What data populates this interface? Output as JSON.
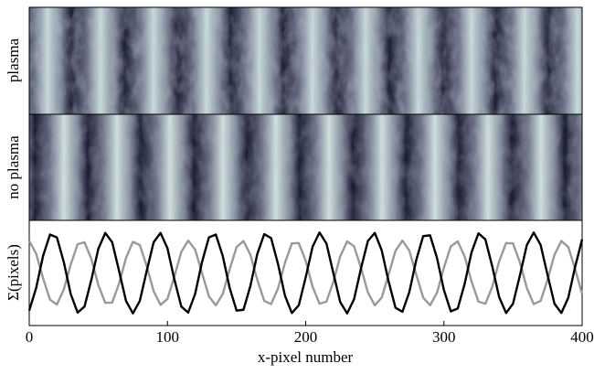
{
  "chart_data": {
    "type": "line",
    "panel_labels": [
      "plasma",
      "no plasma"
    ],
    "xlabel": "x-pixel number",
    "ylabel": "Σ(pixels)",
    "xlim": [
      0,
      400
    ],
    "xticks": [
      0,
      100,
      200,
      300,
      400
    ],
    "ylim": [
      -1.3,
      1.3
    ],
    "x": [
      0,
      5,
      10,
      15,
      20,
      25,
      30,
      35,
      40,
      45,
      50,
      55,
      60,
      65,
      70,
      75,
      80,
      85,
      90,
      95,
      100,
      105,
      110,
      115,
      120,
      125,
      130,
      135,
      140,
      145,
      150,
      155,
      160,
      165,
      170,
      175,
      180,
      185,
      190,
      195,
      200,
      205,
      210,
      215,
      220,
      225,
      230,
      235,
      240,
      245,
      250,
      255,
      260,
      265,
      270,
      275,
      280,
      285,
      290,
      295,
      300,
      305,
      310,
      315,
      320,
      325,
      330,
      335,
      340,
      345,
      350,
      355,
      360,
      365,
      370,
      375,
      380,
      385,
      390,
      395,
      400
    ],
    "series": [
      {
        "color": "#999999",
        "values": [
          0.79,
          0.48,
          -0.13,
          -0.66,
          -0.78,
          -0.41,
          0.21,
          0.71,
          0.76,
          0.34,
          -0.3,
          -0.74,
          -0.73,
          -0.26,
          0.37,
          0.77,
          0.69,
          0.17,
          -0.45,
          -0.79,
          -0.64,
          -0.09,
          0.52,
          0.8,
          0.58,
          0.0,
          -0.58,
          -0.8,
          -0.52,
          0.09,
          0.64,
          0.79,
          0.45,
          -0.17,
          -0.69,
          -0.77,
          -0.38,
          0.25,
          0.73,
          0.74,
          0.3,
          -0.34,
          -0.76,
          -0.71,
          -0.22,
          0.41,
          0.78,
          0.66,
          0.13,
          -0.48,
          -0.8,
          -0.61,
          -0.04,
          0.55,
          0.8,
          0.55,
          -0.04,
          -0.61,
          -0.8,
          -0.49,
          0.13,
          0.66,
          0.78,
          0.41,
          -0.21,
          -0.71,
          -0.76,
          -0.34,
          0.29,
          0.74,
          0.73,
          0.26,
          -0.37,
          -0.77,
          -0.69,
          -0.17,
          0.45,
          0.79,
          0.64,
          0.09,
          -0.52
        ]
      },
      {
        "color": "#000000",
        "values": [
          -0.93,
          -0.37,
          0.42,
          0.95,
          0.88,
          0.27,
          -0.52,
          -0.98,
          -0.83,
          -0.16,
          0.6,
          0.99,
          0.76,
          0.05,
          -0.69,
          -1.0,
          -0.69,
          0.05,
          0.76,
          0.99,
          0.61,
          -0.16,
          -0.83,
          -0.98,
          -0.52,
          0.27,
          0.88,
          0.95,
          0.42,
          -0.37,
          -0.93,
          -0.91,
          -0.32,
          0.47,
          0.96,
          0.86,
          0.22,
          -0.56,
          -0.99,
          -0.8,
          -0.11,
          0.65,
          1.0,
          0.73,
          0.0,
          -0.72,
          -1.0,
          -0.65,
          0.11,
          0.79,
          0.99,
          0.56,
          -0.21,
          -0.86,
          -0.96,
          -0.47,
          0.32,
          0.91,
          0.93,
          0.37,
          -0.42,
          -0.95,
          -0.88,
          -0.27,
          0.51,
          0.98,
          0.83,
          0.16,
          -0.6,
          -0.99,
          -0.76,
          -0.06,
          0.69,
          1.0,
          0.69,
          -0.05,
          -0.76,
          -0.99,
          -0.61,
          0.16,
          0.83
        ]
      }
    ]
  }
}
